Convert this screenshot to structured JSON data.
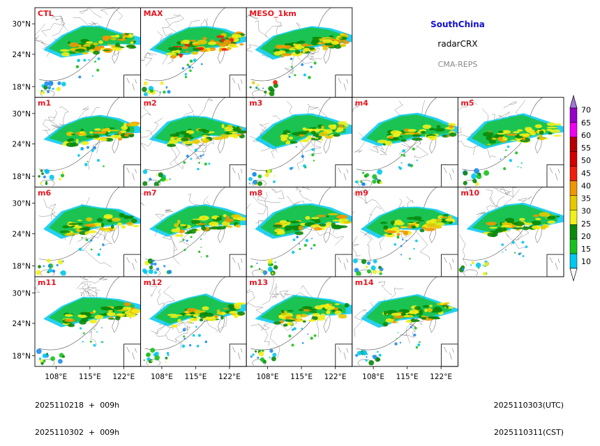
{
  "colors": {
    "panel_label": "#e8141e",
    "region_title": "#1010d0",
    "model_name": "#888888"
  },
  "chart_data": {
    "type": "heatmap",
    "title_region": "SouthChina",
    "subtitle_product": "radarCRX",
    "model_name": "CMA-REPS",
    "panels": [
      "CTL",
      "MAX",
      "MESO_1km",
      "m1",
      "m2",
      "m3",
      "m4",
      "m5",
      "m6",
      "m7",
      "m8",
      "m9",
      "m10",
      "m11",
      "m12",
      "m13",
      "m14"
    ],
    "lat_ticks": [
      "30°N",
      "24°N",
      "18°N"
    ],
    "lon_ticks": [
      "108°E",
      "115°E",
      "122°E"
    ],
    "colorbar": {
      "levels": [
        10,
        15,
        20,
        25,
        30,
        35,
        40,
        45,
        50,
        55,
        60,
        65,
        70
      ],
      "labels": [
        "70",
        "65",
        "60",
        "55",
        "50",
        "45",
        "40",
        "35",
        "30",
        "25",
        "20",
        "15",
        "10"
      ],
      "colors": [
        "#1e8cf0",
        "#00c8f0",
        "#18c01c",
        "#0a8a0a",
        "#f0f01a",
        "#e6c800",
        "#f09600",
        "#f01e0a",
        "#d20000",
        "#b40000",
        "#f000f0",
        "#9600c8",
        "#a078d8"
      ]
    },
    "footer": {
      "init_utc": "2025110218  +  009h",
      "init_cst": "2025110302  +  009h",
      "valid_utc": "2025110303(UTC)",
      "valid_cst": "2025110311(CST)"
    }
  }
}
